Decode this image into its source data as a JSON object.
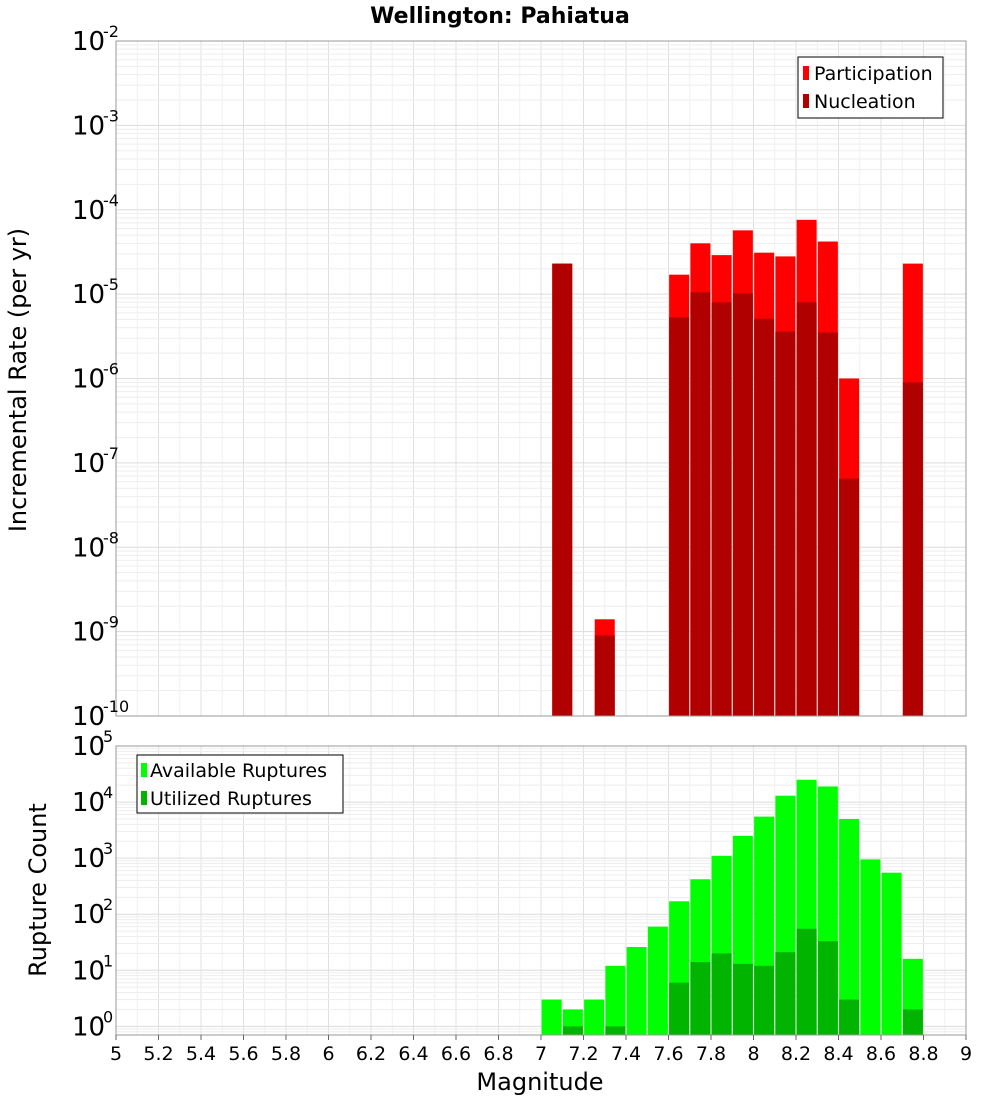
{
  "chart_data": [
    {
      "type": "bar",
      "title": "Wellington: Pahiatua",
      "xlabel": "",
      "ylabel": "Incremental Rate (per yr)",
      "yscale": "log",
      "ylim": [
        1e-10,
        0.01
      ],
      "xlim": [
        5,
        9
      ],
      "grid": true,
      "legend_position": "top-right",
      "x": [
        7.1,
        7.3,
        7.65,
        7.75,
        7.85,
        7.95,
        8.05,
        8.15,
        8.25,
        8.35,
        8.45,
        8.75
      ],
      "series": [
        {
          "name": "Participation",
          "color": "#ff0000",
          "values": [
            2.3e-05,
            1.4e-09,
            1.7e-05,
            4e-05,
            2.9e-05,
            5.7e-05,
            3.1e-05,
            2.8e-05,
            7.6e-05,
            4.2e-05,
            1e-06,
            2.3e-05
          ]
        },
        {
          "name": "Nucleation",
          "color": "#b00000",
          "values": [
            2.3e-05,
            9e-10,
            5.3e-06,
            1.05e-05,
            8e-06,
            1.02e-05,
            5.1e-06,
            3.6e-06,
            8e-06,
            3.5e-06,
            6.5e-08,
            9e-07
          ]
        }
      ]
    },
    {
      "type": "bar",
      "title": "",
      "xlabel": "Magnitude",
      "ylabel": "Rupture Count",
      "yscale": "log",
      "ylim": [
        0.7,
        100000.0
      ],
      "xlim": [
        5,
        9
      ],
      "grid": true,
      "legend_position": "top-left",
      "x": [
        7.05,
        7.15,
        7.25,
        7.35,
        7.45,
        7.55,
        7.65,
        7.75,
        7.85,
        7.95,
        8.05,
        8.15,
        8.25,
        8.35,
        8.45,
        8.55,
        8.65,
        8.75
      ],
      "series": [
        {
          "name": "Available Ruptures",
          "color": "#00ff00",
          "values": [
            3,
            2,
            3,
            12,
            26,
            60,
            170,
            420,
            1100,
            2500,
            5500,
            13000,
            25000,
            19000,
            5000,
            950,
            550,
            16
          ]
        },
        {
          "name": "Utilized Ruptures",
          "color": "#00b400",
          "values": [
            0,
            1,
            0,
            1,
            0,
            0,
            6,
            14,
            20,
            13,
            12,
            21,
            55,
            33,
            3,
            0,
            0,
            2
          ]
        }
      ]
    }
  ],
  "x_ticks": [
    "5",
    "5.2",
    "5.4",
    "5.6",
    "5.8",
    "6",
    "6.2",
    "6.4",
    "6.6",
    "6.8",
    "7",
    "7.2",
    "7.4",
    "7.6",
    "7.8",
    "8",
    "8.2",
    "8.4",
    "8.6",
    "8.8",
    "9"
  ],
  "top_y_ticks": [
    {
      "base": "10",
      "exp": "-10",
      "value": 1e-10
    },
    {
      "base": "10",
      "exp": "-9",
      "value": 1e-09
    },
    {
      "base": "10",
      "exp": "-8",
      "value": 1e-08
    },
    {
      "base": "10",
      "exp": "-7",
      "value": 1e-07
    },
    {
      "base": "10",
      "exp": "-6",
      "value": 1e-06
    },
    {
      "base": "10",
      "exp": "-5",
      "value": 1e-05
    },
    {
      "base": "10",
      "exp": "-4",
      "value": 0.0001
    },
    {
      "base": "10",
      "exp": "-3",
      "value": 0.001
    },
    {
      "base": "10",
      "exp": "-2",
      "value": 0.01
    }
  ],
  "bottom_y_ticks": [
    {
      "base": "10",
      "exp": "0",
      "value": 1
    },
    {
      "base": "10",
      "exp": "1",
      "value": 10
    },
    {
      "base": "10",
      "exp": "2",
      "value": 100
    },
    {
      "base": "10",
      "exp": "3",
      "value": 1000
    },
    {
      "base": "10",
      "exp": "4",
      "value": 10000
    },
    {
      "base": "10",
      "exp": "5",
      "value": 100000
    }
  ]
}
